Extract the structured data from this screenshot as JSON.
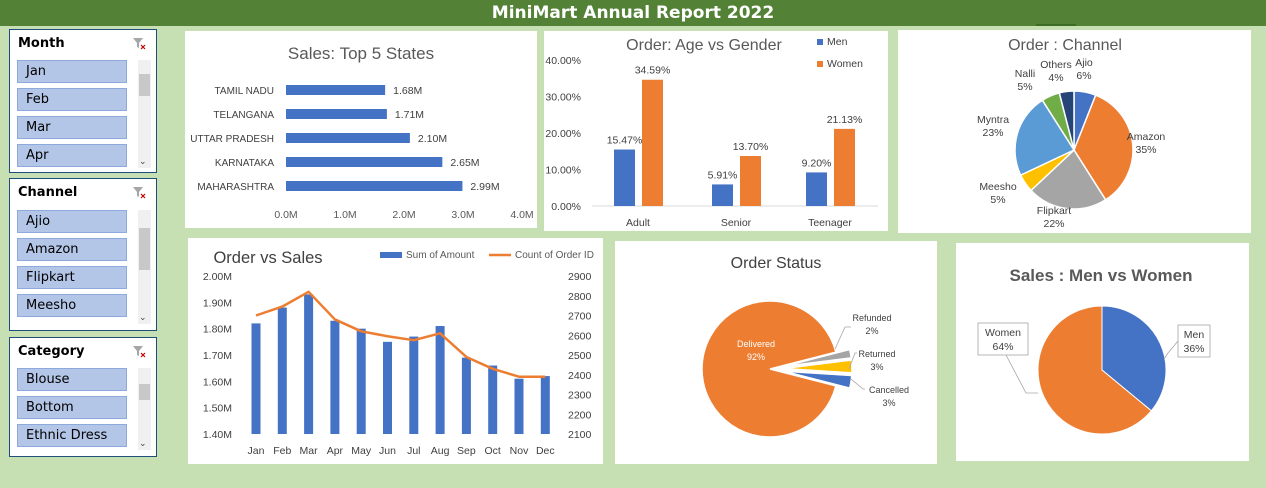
{
  "report_title": "MiniMart Annual Report 2022",
  "slicers": {
    "month": {
      "title": "Month",
      "items": [
        "Jan",
        "Feb",
        "Mar",
        "Apr"
      ]
    },
    "channel": {
      "title": "Channel",
      "items": [
        "Ajio",
        "Amazon",
        "Flipkart",
        "Meesho"
      ]
    },
    "category": {
      "title": "Category",
      "items": [
        "Blouse",
        "Bottom",
        "Ethnic Dress"
      ]
    }
  },
  "colors": {
    "blue": "#4472c4",
    "orange": "#ed7d31",
    "gray": "#a5a5a5",
    "yellow": "#ffc000",
    "lightblue": "#5b9bd5",
    "green": "#70ad47",
    "navy": "#264478"
  },
  "chart_data": [
    {
      "id": "top5",
      "type": "bar",
      "orientation": "horizontal",
      "title": "Sales: Top 5 States",
      "categories": [
        "TAMIL NADU",
        "TELANGANA",
        "UTTAR PRADESH",
        "KARNATAKA",
        "MAHARASHTRA"
      ],
      "values": [
        1.68,
        1.71,
        2.1,
        2.65,
        2.99
      ],
      "data_labels": [
        "1.68M",
        "1.71M",
        "2.10M",
        "2.65M",
        "2.99M"
      ],
      "xticks": [
        "0.0M",
        "1.0M",
        "2.0M",
        "3.0M",
        "4.0M"
      ],
      "xlim": [
        0,
        4
      ],
      "grid": false
    },
    {
      "id": "agegender",
      "type": "bar",
      "title": "Order: Age vs Gender",
      "categories": [
        "Adult",
        "Senior",
        "Teenager"
      ],
      "series": [
        {
          "name": "Men",
          "values": [
            15.47,
            5.91,
            9.2
          ],
          "labels": [
            "15.47%",
            "5.91%",
            "9.20%"
          ]
        },
        {
          "name": "Women",
          "values": [
            34.59,
            13.7,
            21.13
          ],
          "labels": [
            "34.59%",
            "13.70%",
            "21.13%"
          ]
        }
      ],
      "yticks": [
        "0.00%",
        "10.00%",
        "20.00%",
        "30.00%",
        "40.00%"
      ],
      "ylim": [
        0,
        40
      ],
      "legend": "top-right"
    },
    {
      "id": "channel",
      "type": "pie",
      "title": "Order : Channel",
      "slices": [
        {
          "name": "Ajio",
          "value": 6,
          "label": "6%"
        },
        {
          "name": "Amazon",
          "value": 35,
          "label": "35%"
        },
        {
          "name": "Flipkart",
          "value": 22,
          "label": "22%"
        },
        {
          "name": "Meesho",
          "value": 5,
          "label": "5%"
        },
        {
          "name": "Myntra",
          "value": 23,
          "label": "23%"
        },
        {
          "name": "Nalli",
          "value": 5,
          "label": "5%"
        },
        {
          "name": "Others",
          "value": 4,
          "label": "4%"
        }
      ]
    },
    {
      "id": "ordersales",
      "type": "bar",
      "title": "Order vs Sales",
      "categories": [
        "Jan",
        "Feb",
        "Mar",
        "Apr",
        "May",
        "Jun",
        "Jul",
        "Aug",
        "Sep",
        "Oct",
        "Nov",
        "Dec"
      ],
      "series": [
        {
          "name": "Sum of Amount",
          "type": "bar",
          "axis": "left",
          "values": [
            1.82,
            1.88,
            1.93,
            1.83,
            1.8,
            1.75,
            1.77,
            1.81,
            1.69,
            1.66,
            1.61,
            1.62
          ]
        },
        {
          "name": "Count of Order ID",
          "type": "line",
          "axis": "right",
          "values": [
            2700,
            2745,
            2820,
            2680,
            2620,
            2595,
            2575,
            2610,
            2490,
            2430,
            2390,
            2390
          ]
        }
      ],
      "yticks_left": [
        "1.40M",
        "1.50M",
        "1.60M",
        "1.70M",
        "1.80M",
        "1.90M",
        "2.00M"
      ],
      "ylim_left": [
        1.4,
        2.0
      ],
      "yticks_right": [
        "2100",
        "2200",
        "2300",
        "2400",
        "2500",
        "2600",
        "2700",
        "2800",
        "2900"
      ],
      "ylim_right": [
        2100,
        2900
      ],
      "legend": "top"
    },
    {
      "id": "status",
      "type": "pie",
      "title": "Order Status",
      "slices": [
        {
          "name": "Delivered",
          "value": 92,
          "label": "92%"
        },
        {
          "name": "Refunded",
          "value": 2,
          "label": "2%"
        },
        {
          "name": "Returned",
          "value": 3,
          "label": "3%"
        },
        {
          "name": "Cancelled",
          "value": 3,
          "label": "3%"
        }
      ]
    },
    {
      "id": "menwomen",
      "type": "pie",
      "title": "Sales : Men vs Women",
      "slices": [
        {
          "name": "Men",
          "value": 36,
          "label": "36%"
        },
        {
          "name": "Women",
          "value": 64,
          "label": "64%"
        }
      ]
    }
  ]
}
